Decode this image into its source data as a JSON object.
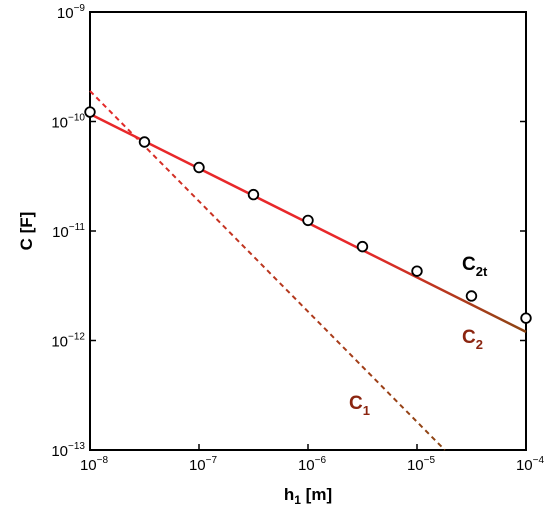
{
  "chart_data": {
    "type": "line",
    "xscale": "log",
    "yscale": "log",
    "xlabel": {
      "main": "h",
      "sub": "1",
      "unit": " [m]"
    },
    "ylabel": "C [F]",
    "xlim": [
      1e-08,
      0.0001
    ],
    "ylim": [
      1e-13,
      1e-09
    ],
    "x_ticks": [
      {
        "base": "10",
        "exp": "−8",
        "value": 1e-08
      },
      {
        "base": "10",
        "exp": "−7",
        "value": 1e-07
      },
      {
        "base": "10",
        "exp": "−6",
        "value": 1e-06
      },
      {
        "base": "10",
        "exp": "−5",
        "value": 1e-05
      },
      {
        "base": "10",
        "exp": "−4",
        "value": 0.0001
      }
    ],
    "y_ticks": [
      {
        "base": "10",
        "exp": "−13",
        "value": 1e-13
      },
      {
        "base": "10",
        "exp": "−12",
        "value": 1e-12
      },
      {
        "base": "10",
        "exp": "−11",
        "value": 1e-11
      },
      {
        "base": "10",
        "exp": "−10",
        "value": 1e-10
      },
      {
        "base": "10",
        "exp": "−9",
        "value": 1e-09
      }
    ],
    "grid": false,
    "series": [
      {
        "name": "C1",
        "label": {
          "main": "C",
          "sub": "1"
        },
        "style": "dashed",
        "colors": [
          "#e8282a",
          "#8b4513"
        ],
        "x": [
          1e-08,
          1.8e-05
        ],
        "y": [
          1.9e-10,
          1e-13
        ]
      },
      {
        "name": "C2",
        "label": {
          "main": "C",
          "sub": "2"
        },
        "style": "solid",
        "colors": [
          "#e8282a",
          "#8b4513"
        ],
        "x": [
          1e-08,
          0.0001
        ],
        "y": [
          1.17e-10,
          1.2e-12
        ]
      },
      {
        "name": "C2t",
        "label": {
          "main": "C",
          "sub": "2t"
        },
        "style": "markers",
        "colors": [
          "#000000"
        ],
        "x": [
          1e-08,
          3.16e-08,
          1e-07,
          3.16e-07,
          1e-06,
          3.16e-06,
          1e-05,
          3.16e-05,
          0.0001
        ],
        "y": [
          1.22e-10,
          6.5e-11,
          3.8e-11,
          2.15e-11,
          1.25e-11,
          7.2e-12,
          4.3e-12,
          2.55e-12,
          1.6e-12
        ]
      }
    ]
  }
}
